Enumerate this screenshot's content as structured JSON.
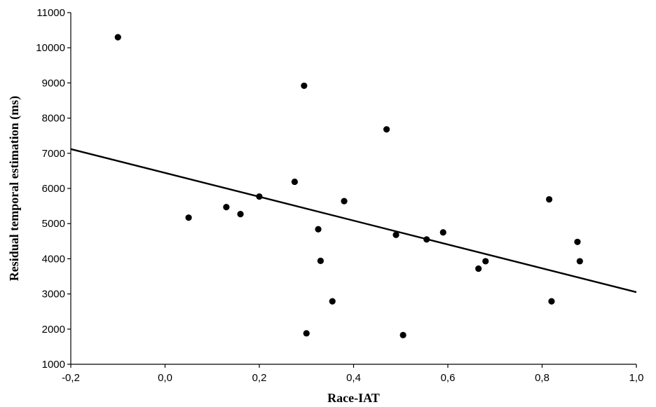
{
  "chart_data": {
    "type": "scatter",
    "xlabel": "Race-IAT",
    "ylabel": "Residual temporal estimation (ms)",
    "xlim": [
      -0.2,
      1.0
    ],
    "ylim": [
      1000,
      11000
    ],
    "x_ticks": [
      "-0,2",
      "0,0",
      "0,2",
      "0,4",
      "0,6",
      "0,8",
      "1,0"
    ],
    "x_tick_values": [
      -0.2,
      0.0,
      0.2,
      0.4,
      0.6,
      0.8,
      1.0
    ],
    "y_ticks": [
      "1000",
      "2000",
      "3000",
      "4000",
      "5000",
      "6000",
      "7000",
      "8000",
      "9000",
      "10000",
      "11000"
    ],
    "y_tick_values": [
      1000,
      2000,
      3000,
      4000,
      5000,
      6000,
      7000,
      8000,
      9000,
      10000,
      11000
    ],
    "grid": false,
    "points": [
      {
        "x": -0.1,
        "y": 10300
      },
      {
        "x": 0.05,
        "y": 5170
      },
      {
        "x": 0.13,
        "y": 5470
      },
      {
        "x": 0.16,
        "y": 5270
      },
      {
        "x": 0.2,
        "y": 5770
      },
      {
        "x": 0.275,
        "y": 6190
      },
      {
        "x": 0.295,
        "y": 8920
      },
      {
        "x": 0.3,
        "y": 1880
      },
      {
        "x": 0.325,
        "y": 4840
      },
      {
        "x": 0.33,
        "y": 3940
      },
      {
        "x": 0.355,
        "y": 2790
      },
      {
        "x": 0.38,
        "y": 5640
      },
      {
        "x": 0.47,
        "y": 7680
      },
      {
        "x": 0.49,
        "y": 4680
      },
      {
        "x": 0.505,
        "y": 1830
      },
      {
        "x": 0.555,
        "y": 4550
      },
      {
        "x": 0.59,
        "y": 4750
      },
      {
        "x": 0.665,
        "y": 3720
      },
      {
        "x": 0.68,
        "y": 3930
      },
      {
        "x": 0.815,
        "y": 5690
      },
      {
        "x": 0.82,
        "y": 2790
      },
      {
        "x": 0.875,
        "y": 4480
      },
      {
        "x": 0.88,
        "y": 3930
      }
    ],
    "trendline": {
      "x": [
        -0.2,
        1.0
      ],
      "y": [
        7120,
        3050
      ]
    }
  }
}
